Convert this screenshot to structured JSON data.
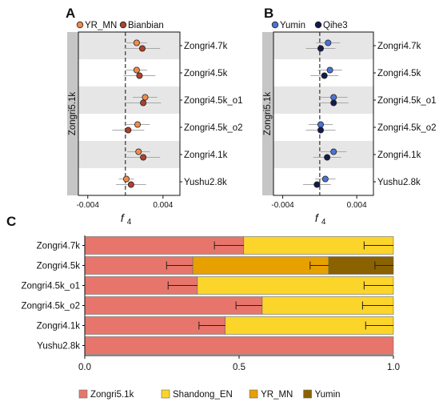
{
  "colors": {
    "YR_MN": "#f08c4a",
    "Bianbian": "#b0402a",
    "Yumin": "#4a73d9",
    "Qihe3": "#141a4a",
    "Zongri5.1k": "#e8756b",
    "Shandong_EN": "#fbd52a",
    "YR_MN_bar": "#e6a000",
    "Yumin_bar": "#8b6200",
    "band": "#e6e6e6",
    "strip": "#c6c6c6",
    "errbar": "#a8a8a8"
  },
  "chart_data": [
    {
      "panel": "A",
      "type": "scatter",
      "strip_label": "Zongri5.1k",
      "xlabel": "f",
      "xlabel_sub": "4",
      "xlim": [
        -0.005,
        0.0058
      ],
      "xticks": [
        -0.004,
        0.004
      ],
      "xtick_labels": [
        "-0.004",
        "0.004"
      ],
      "reference_line": 0,
      "categories": [
        "Zongri4.7k",
        "Zongri4.5k",
        "Zongri4.5k_o1",
        "Zongri4.5k_o2",
        "Zongri4.1k",
        "Yushu2.8k"
      ],
      "series": [
        {
          "name": "YR_MN",
          "color": "#f08c4a",
          "values": [
            0.0012,
            0.0012,
            0.0021,
            0.0013,
            0.0014,
            0.0001
          ],
          "errors": [
            0.0011,
            0.0011,
            0.0013,
            0.0013,
            0.0012,
            0.0008
          ]
        },
        {
          "name": "Bianbian",
          "color": "#b0402a",
          "values": [
            0.0018,
            0.0015,
            0.0019,
            0.0003,
            0.0019,
            0.0006
          ],
          "errors": [
            0.0019,
            0.0017,
            0.0019,
            0.0017,
            0.0018,
            0.0016
          ]
        }
      ],
      "legend": "top"
    },
    {
      "panel": "B",
      "type": "scatter",
      "strip_label": "Zongri5.1k",
      "xlabel": "f",
      "xlabel_sub": "4",
      "xlim": [
        -0.005,
        0.0058
      ],
      "xticks": [
        -0.004,
        0.004
      ],
      "xtick_labels": [
        "-0.004",
        "0.004"
      ],
      "reference_line": 0,
      "categories": [
        "Zongri4.7k",
        "Zongri4.5k",
        "Zongri4.5k_o1",
        "Zongri4.5k_o2",
        "Zongri4.1k",
        "Yushu2.8k"
      ],
      "series": [
        {
          "name": "Yumin",
          "color": "#4a73d9",
          "values": [
            0.0009,
            0.0011,
            0.0015,
            0.0001,
            0.0015,
            0.0006
          ],
          "errors": [
            0.0013,
            0.0013,
            0.0015,
            0.0013,
            0.0014,
            0.0011
          ]
        },
        {
          "name": "Qihe3",
          "color": "#141a4a",
          "values": [
            0.0001,
            0.0005,
            0.0015,
            0.0001,
            0.0008,
            -0.0003
          ],
          "errors": [
            0.0016,
            0.0015,
            0.0016,
            0.0016,
            0.0015,
            0.0015
          ]
        }
      ],
      "legend": "top"
    },
    {
      "panel": "C",
      "type": "bar",
      "orientation": "horizontal",
      "stacked": true,
      "xlim": [
        0,
        1
      ],
      "xticks": [
        0,
        0.5,
        1
      ],
      "xtick_labels": [
        "0.0",
        "0.5",
        "1.0"
      ],
      "categories": [
        "Zongri4.7k",
        "Zongri4.5k",
        "Zongri4.5k_o1",
        "Zongri4.5k_o2",
        "Zongri4.1k",
        "Yushu2.8k"
      ],
      "series": [
        {
          "name": "Zongri5.1k",
          "color": "#e8756b",
          "values": [
            0.515,
            0.35,
            0.365,
            0.575,
            0.455,
            1.0
          ]
        },
        {
          "name": "Shandong_EN",
          "color": "#fbd52a",
          "values": [
            0.485,
            0,
            0.635,
            0.425,
            0.545,
            0
          ]
        },
        {
          "name": "YR_MN",
          "color": "#e6a000",
          "values": [
            0,
            0.44,
            0,
            0,
            0,
            0
          ]
        },
        {
          "name": "Yumin",
          "color": "#8b6200",
          "values": [
            0,
            0.21,
            0,
            0,
            0,
            0
          ]
        }
      ],
      "error_bars": [
        {
          "category": "Zongri4.7k",
          "center": 0.515,
          "low": 0.42,
          "high": 0.515
        },
        {
          "category": "Zongri4.7k",
          "center": 1.0,
          "low": 0.905,
          "high": 1.0
        },
        {
          "category": "Zongri4.5k",
          "center": 0.35,
          "low": 0.265,
          "high": 0.35
        },
        {
          "category": "Zongri4.5k",
          "center": 0.79,
          "low": 0.73,
          "high": 0.79
        },
        {
          "category": "Zongri4.5k",
          "center": 1.0,
          "low": 0.94,
          "high": 1.0
        },
        {
          "category": "Zongri4.5k_o1",
          "center": 0.365,
          "low": 0.27,
          "high": 0.365
        },
        {
          "category": "Zongri4.5k_o1",
          "center": 1.0,
          "low": 0.905,
          "high": 1.0
        },
        {
          "category": "Zongri4.5k_o2",
          "center": 0.575,
          "low": 0.49,
          "high": 0.575
        },
        {
          "category": "Zongri4.5k_o2",
          "center": 1.0,
          "low": 0.9,
          "high": 1.0
        },
        {
          "category": "Zongri4.1k",
          "center": 0.455,
          "low": 0.37,
          "high": 0.455
        },
        {
          "category": "Zongri4.1k",
          "center": 1.0,
          "low": 0.91,
          "high": 1.0
        }
      ],
      "legend": "bottom"
    }
  ]
}
